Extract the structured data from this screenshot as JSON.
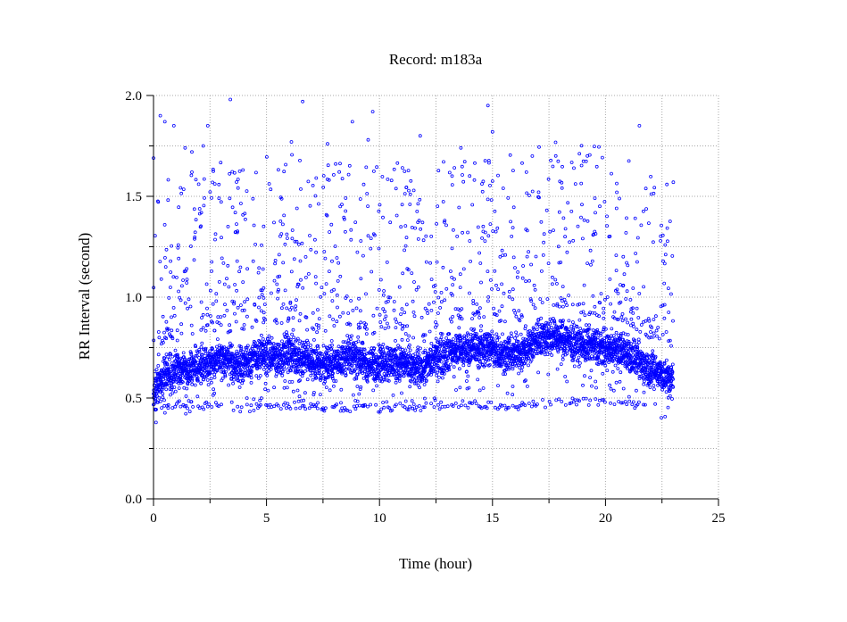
{
  "chart_data": {
    "type": "scatter",
    "title": "Record:  m183a",
    "xlabel": "Time (hour)",
    "ylabel": "RR Interval (second)",
    "xlim": [
      0,
      25
    ],
    "ylim": [
      0,
      2
    ],
    "x_ticks": [
      0,
      5,
      10,
      15,
      20,
      25
    ],
    "y_ticks": [
      0.0,
      0.5,
      1.0,
      1.5,
      2.0
    ],
    "x_tick_labels": [
      "0",
      "5",
      "10",
      "15",
      "20",
      "25"
    ],
    "y_tick_labels": [
      "0.0",
      "0.5",
      "1.0",
      "1.5",
      "2.0"
    ],
    "grid": true,
    "marker": "hollow circle",
    "series_color": "#0000ff",
    "series": [
      {
        "baseline": [
          [
            0.0,
            0.52
          ],
          [
            0.5,
            0.62
          ],
          [
            1.0,
            0.63
          ],
          [
            1.5,
            0.64
          ],
          [
            2.0,
            0.66
          ],
          [
            2.5,
            0.68
          ],
          [
            3.0,
            0.69
          ],
          [
            3.5,
            0.66
          ],
          [
            4.0,
            0.67
          ],
          [
            4.5,
            0.7
          ],
          [
            5.0,
            0.71
          ],
          [
            5.5,
            0.7
          ],
          [
            6.0,
            0.73
          ],
          [
            6.5,
            0.7
          ],
          [
            7.0,
            0.68
          ],
          [
            7.5,
            0.66
          ],
          [
            8.0,
            0.68
          ],
          [
            8.5,
            0.7
          ],
          [
            9.0,
            0.7
          ],
          [
            9.5,
            0.66
          ],
          [
            10.0,
            0.68
          ],
          [
            10.5,
            0.68
          ],
          [
            11.0,
            0.68
          ],
          [
            11.5,
            0.64
          ],
          [
            12.0,
            0.66
          ],
          [
            12.5,
            0.7
          ],
          [
            13.0,
            0.72
          ],
          [
            13.5,
            0.74
          ],
          [
            14.0,
            0.74
          ],
          [
            14.5,
            0.75
          ],
          [
            15.0,
            0.74
          ],
          [
            15.5,
            0.72
          ],
          [
            16.0,
            0.72
          ],
          [
            16.5,
            0.74
          ],
          [
            17.0,
            0.8
          ],
          [
            17.5,
            0.81
          ],
          [
            18.0,
            0.8
          ],
          [
            18.5,
            0.78
          ],
          [
            19.0,
            0.76
          ],
          [
            19.5,
            0.76
          ],
          [
            20.0,
            0.74
          ],
          [
            20.5,
            0.74
          ],
          [
            21.0,
            0.72
          ],
          [
            21.5,
            0.68
          ],
          [
            22.0,
            0.64
          ],
          [
            22.5,
            0.62
          ],
          [
            23.0,
            0.58
          ]
        ],
        "lower_band": [
          [
            0.2,
            0.46
          ],
          [
            1.0,
            0.47
          ],
          [
            2.5,
            0.46
          ],
          [
            3.5,
            0.45
          ],
          [
            4.5,
            0.45
          ],
          [
            5.5,
            0.46
          ],
          [
            6.5,
            0.47
          ],
          [
            7.0,
            0.46
          ],
          [
            8.0,
            0.45
          ],
          [
            9.0,
            0.45
          ],
          [
            10.0,
            0.45
          ],
          [
            11.0,
            0.45
          ],
          [
            12.0,
            0.46
          ],
          [
            13.0,
            0.46
          ],
          [
            14.0,
            0.47
          ],
          [
            15.0,
            0.46
          ],
          [
            16.0,
            0.46
          ],
          [
            17.0,
            0.47
          ],
          [
            18.0,
            0.48
          ],
          [
            19.0,
            0.48
          ],
          [
            20.0,
            0.48
          ],
          [
            21.0,
            0.47
          ]
        ],
        "outliers": [
          [
            0.0,
            1.69
          ],
          [
            0.3,
            1.9
          ],
          [
            0.5,
            1.87
          ],
          [
            0.9,
            1.85
          ],
          [
            1.4,
            1.74
          ],
          [
            1.7,
            1.72
          ],
          [
            1.7,
            1.62
          ],
          [
            2.0,
            1.56
          ],
          [
            2.2,
            1.75
          ],
          [
            2.4,
            1.85
          ],
          [
            3.4,
            1.98
          ],
          [
            6.1,
            1.77
          ],
          [
            6.6,
            1.97
          ],
          [
            7.7,
            1.76
          ],
          [
            8.8,
            1.87
          ],
          [
            9.5,
            1.78
          ],
          [
            9.7,
            1.92
          ],
          [
            11.8,
            1.8
          ],
          [
            14.8,
            1.95
          ],
          [
            15.0,
            1.82
          ],
          [
            13.6,
            1.74
          ],
          [
            21.5,
            1.85
          ],
          [
            23.0,
            1.57
          ],
          [
            17.8,
            1.7
          ],
          [
            18.6,
            1.64
          ],
          [
            19.2,
            1.7
          ],
          [
            20.5,
            1.52
          ],
          [
            16.5,
            1.62
          ]
        ]
      }
    ]
  }
}
